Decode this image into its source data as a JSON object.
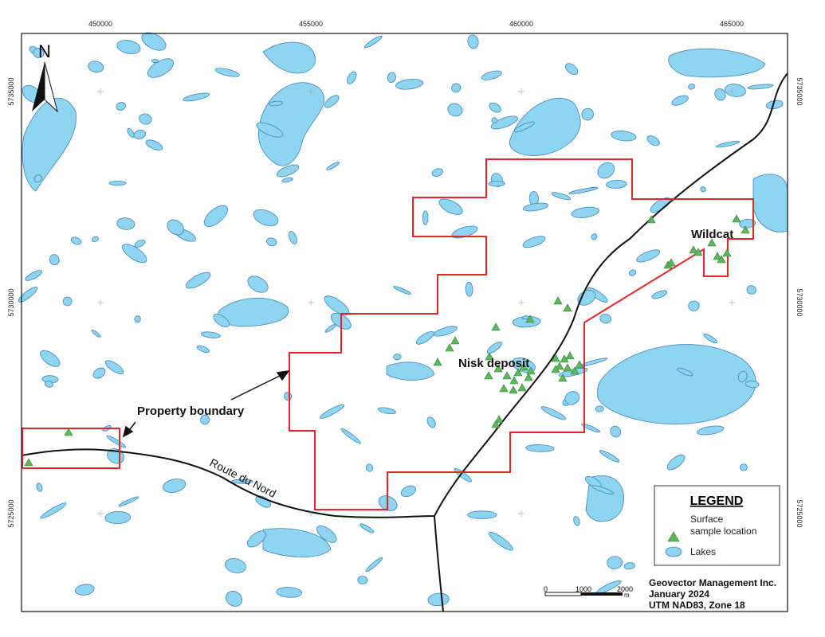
{
  "map": {
    "north": "N",
    "eastings": [
      "450000",
      "455000",
      "460000",
      "465000"
    ],
    "northings": [
      "5735000",
      "5730000",
      "5725000"
    ],
    "labels": {
      "property_boundary": "Property boundary",
      "nisk": "Nisk deposit",
      "wildcat": "Wildcat",
      "road": "Route du Nord"
    },
    "legend": {
      "title": "LEGEND",
      "samples": [
        "Surface",
        "sample location"
      ],
      "lakes": "Lakes"
    },
    "credits": [
      "Geovector Management Inc.",
      "January 2024",
      "UTM NAD83, Zone 18"
    ],
    "scale": [
      "0",
      "1000",
      "2000",
      "m"
    ]
  }
}
